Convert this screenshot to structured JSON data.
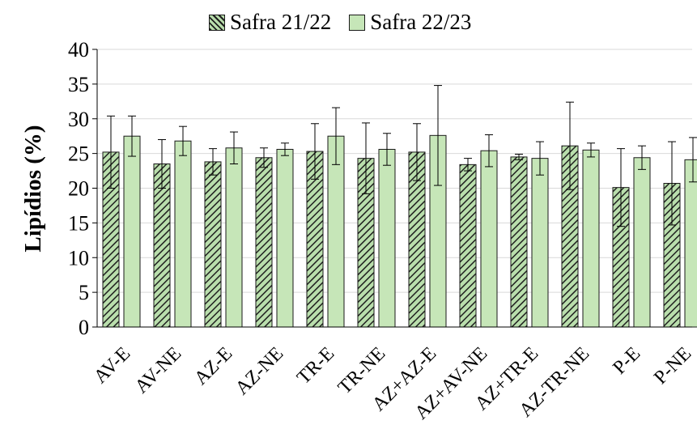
{
  "chart_data": {
    "type": "bar",
    "title": "",
    "xlabel": "",
    "ylabel": "Lipídios (%)",
    "ylim": [
      0,
      40
    ],
    "yticks": [
      0,
      5,
      10,
      15,
      20,
      25,
      30,
      35,
      40
    ],
    "grid": true,
    "legend_position": "top",
    "categories": [
      "AV-E",
      "AV-NE",
      "AZ-E",
      "AZ-NE",
      "TR-E",
      "TR-NE",
      "AZ+AZ-E",
      "AZ+AV-NE",
      "AZ+TR-E",
      "AZ-TR-NE",
      "P-E",
      "P-NE"
    ],
    "series": [
      {
        "name": "Safra 21/22",
        "pattern": "hatched",
        "values": [
          25.2,
          23.5,
          23.8,
          24.4,
          25.3,
          24.3,
          25.2,
          23.4,
          24.5,
          26.1,
          20.1,
          20.7
        ],
        "errors": [
          5.2,
          3.5,
          1.9,
          1.4,
          4.0,
          5.1,
          4.1,
          0.9,
          0.4,
          6.3,
          5.6,
          6.0
        ]
      },
      {
        "name": "Safra 22/23",
        "pattern": "solid",
        "values": [
          27.5,
          26.8,
          25.8,
          25.6,
          27.5,
          25.6,
          27.6,
          25.4,
          24.3,
          25.5,
          24.4,
          24.1
        ],
        "errors": [
          2.9,
          2.1,
          2.3,
          0.9,
          4.1,
          2.3,
          7.2,
          2.3,
          2.4,
          1.0,
          1.7,
          3.2
        ]
      }
    ],
    "colors": {
      "bar_fill": "#c6e6b8",
      "hatch_fill": "#b9deac",
      "hatch_line": "#1f1f1f",
      "border": "#1a1a1a",
      "grid": "#d9d9d9"
    }
  }
}
